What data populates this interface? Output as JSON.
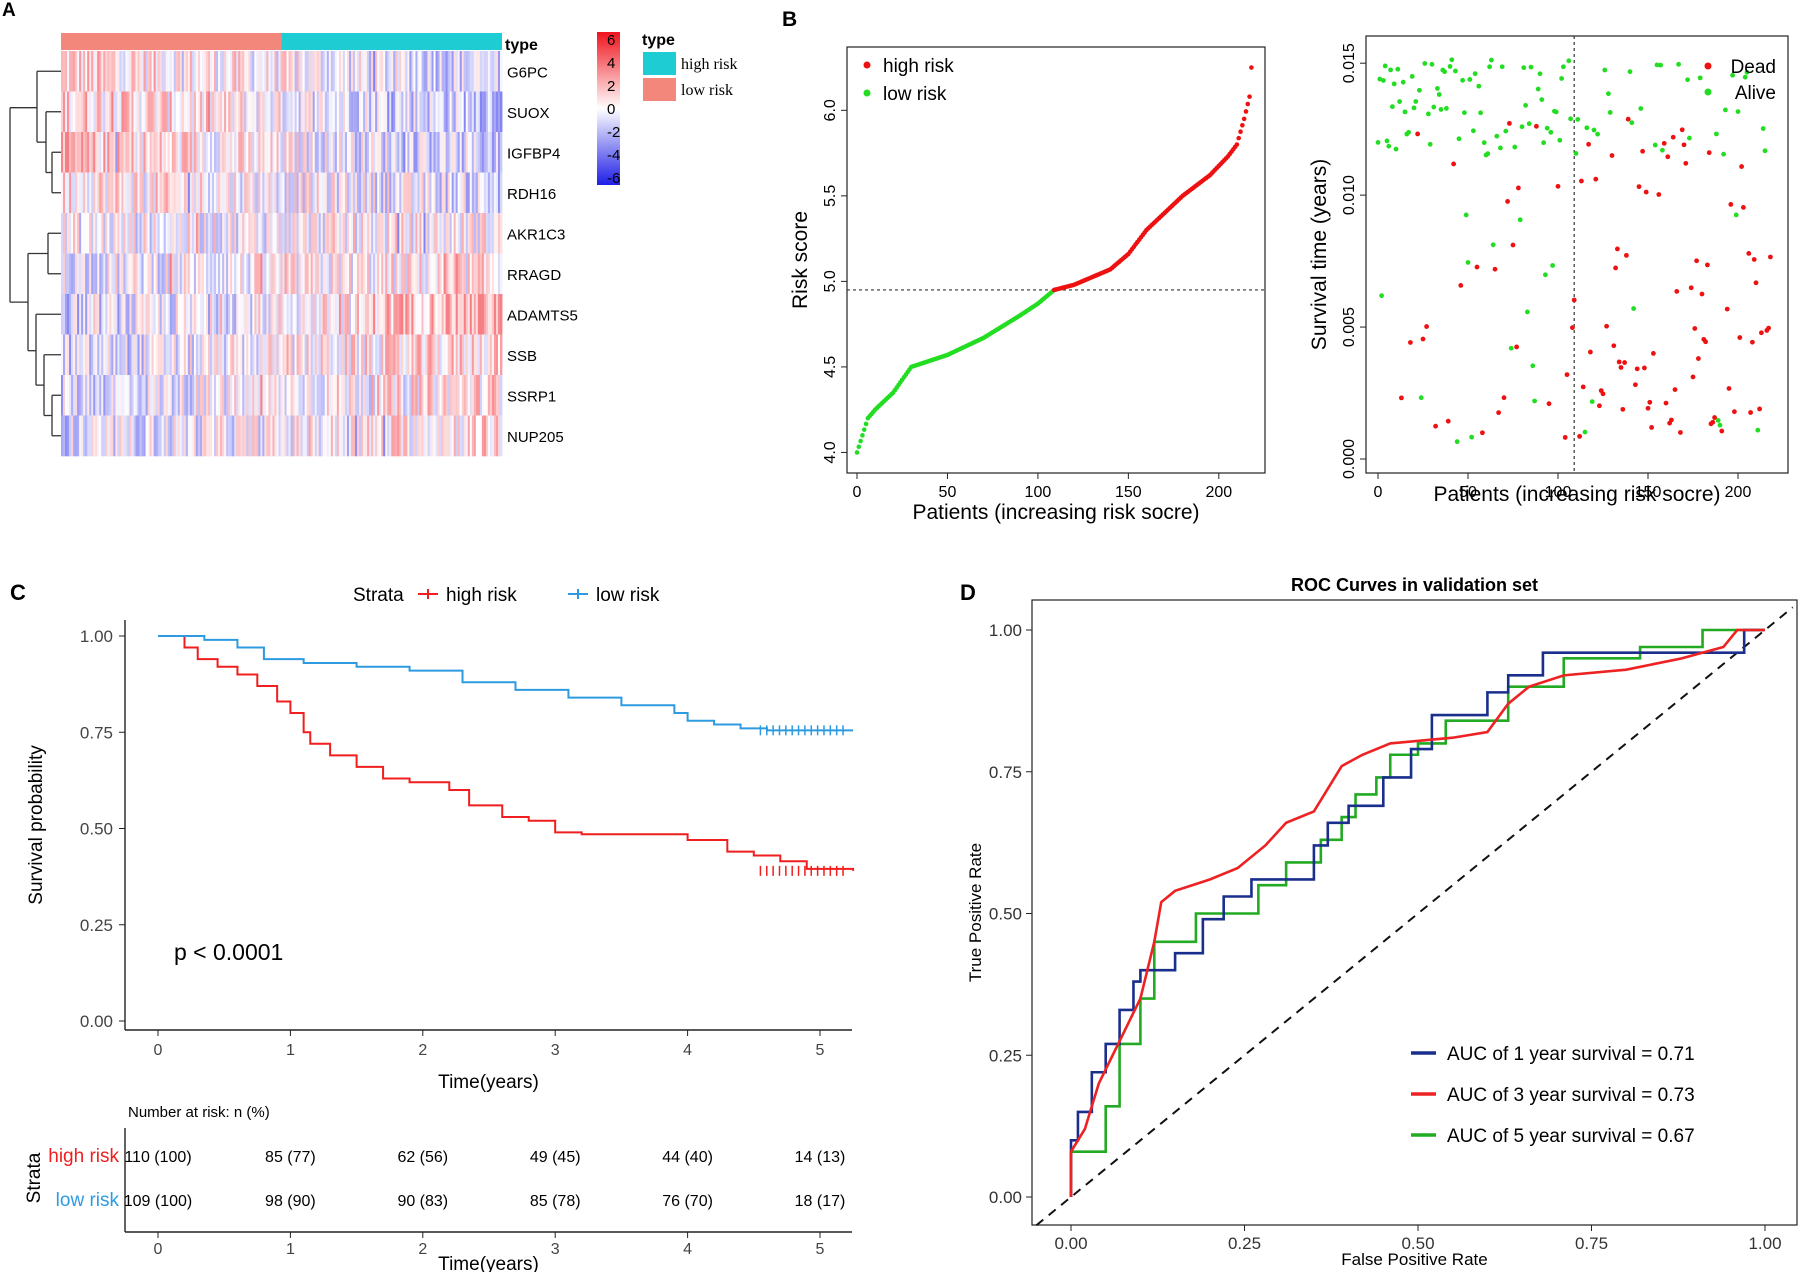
{
  "panel_labels": {
    "a": "A",
    "b": "B",
    "c": "C",
    "d": "D"
  },
  "chart_data": [
    {
      "type": "heatmap",
      "panel": "A",
      "genes": [
        "G6PC",
        "SUOX",
        "IGFBP4",
        "RDH16",
        "AKR1C3",
        "RRAGD",
        "ADAMTS5",
        "SSB",
        "SSRP1",
        "NUP205"
      ],
      "annotation_label": "type",
      "groups": [
        {
          "name": "low risk",
          "color": "#F4877B"
        },
        {
          "name": "high risk",
          "color": "#1ECDD3"
        }
      ],
      "colorbar": {
        "ticks": [
          "6",
          "4",
          "2",
          "0",
          "-2",
          "-4",
          "-6"
        ],
        "high_color": "#F0141E",
        "mid_color": "#FFFFFF",
        "low_color": "#1E1EE6"
      },
      "legend": {
        "title": "type",
        "items": [
          "high risk",
          "low risk"
        ]
      }
    },
    {
      "type": "scatter",
      "panel": "B-left",
      "xlabel": "Patients (increasing risk socre)",
      "ylabel": "Risk score",
      "xlim": [
        0,
        220
      ],
      "ylim": [
        3.95,
        6.3
      ],
      "xticks": [
        "0",
        "50",
        "100",
        "150",
        "200"
      ],
      "yticks": [
        "4.0",
        "4.5",
        "5.0",
        "5.5",
        "6.0"
      ],
      "threshold": 4.95,
      "cutoff_patient": 109,
      "n_patients": 219,
      "curve": [
        [
          0,
          4.0
        ],
        [
          3,
          4.1
        ],
        [
          6,
          4.2
        ],
        [
          10,
          4.25
        ],
        [
          15,
          4.3
        ],
        [
          20,
          4.35
        ],
        [
          30,
          4.5
        ],
        [
          50,
          4.57
        ],
        [
          70,
          4.67
        ],
        [
          90,
          4.8
        ],
        [
          100,
          4.87
        ],
        [
          109,
          4.95
        ],
        [
          120,
          4.98
        ],
        [
          140,
          5.07
        ],
        [
          150,
          5.16
        ],
        [
          160,
          5.3
        ],
        [
          180,
          5.5
        ],
        [
          195,
          5.62
        ],
        [
          205,
          5.73
        ],
        [
          210,
          5.8
        ],
        [
          214,
          5.95
        ],
        [
          217,
          6.08
        ],
        [
          218,
          6.25
        ]
      ],
      "legend": [
        {
          "label": "high risk",
          "color": "#EE1111"
        },
        {
          "label": "low risk",
          "color": "#22DD22"
        }
      ]
    },
    {
      "type": "scatter",
      "panel": "B-right",
      "xlabel": "Patients (increasing risk socre)",
      "ylabel": "Survival time (years)",
      "xlim": [
        0,
        220
      ],
      "ylim": [
        0,
        0.0155
      ],
      "xticks": [
        "0",
        "50",
        "100",
        "150",
        "200"
      ],
      "yticks": [
        "0.000",
        "0.005",
        "0.010",
        "0.015"
      ],
      "cutoff_patient": 109,
      "legend": [
        {
          "label": "Dead",
          "color": "#EE1111"
        },
        {
          "label": "Alive",
          "color": "#22DD22"
        }
      ]
    },
    {
      "type": "line",
      "panel": "C",
      "title": "Strata",
      "xlabel": "Time(years)",
      "ylabel": "Survival probability",
      "xlim": [
        0,
        5.25
      ],
      "ylim": [
        0,
        1.0
      ],
      "xticks": [
        "0",
        "1",
        "2",
        "3",
        "4",
        "5"
      ],
      "yticks": [
        "0.00",
        "0.25",
        "0.50",
        "0.75",
        "1.00"
      ],
      "pvalue": "p < 0.0001",
      "series": [
        {
          "name": "high risk",
          "color": "#F01E1E",
          "steps": [
            [
              0,
              1.0
            ],
            [
              0.2,
              0.97
            ],
            [
              0.3,
              0.94
            ],
            [
              0.45,
              0.92
            ],
            [
              0.6,
              0.9
            ],
            [
              0.75,
              0.87
            ],
            [
              0.9,
              0.83
            ],
            [
              1.0,
              0.8
            ],
            [
              1.1,
              0.75
            ],
            [
              1.15,
              0.72
            ],
            [
              1.3,
              0.69
            ],
            [
              1.5,
              0.66
            ],
            [
              1.7,
              0.63
            ],
            [
              1.9,
              0.62
            ],
            [
              2.2,
              0.6
            ],
            [
              2.35,
              0.56
            ],
            [
              2.6,
              0.53
            ],
            [
              2.8,
              0.52
            ],
            [
              3.0,
              0.49
            ],
            [
              3.2,
              0.485
            ],
            [
              3.5,
              0.485
            ],
            [
              4.0,
              0.47
            ],
            [
              4.3,
              0.44
            ],
            [
              4.5,
              0.43
            ],
            [
              4.7,
              0.415
            ],
            [
              4.9,
              0.395
            ],
            [
              5.25,
              0.39
            ]
          ]
        },
        {
          "name": "low risk",
          "color": "#2E9BE0",
          "steps": [
            [
              0,
              1.0
            ],
            [
              0.35,
              0.99
            ],
            [
              0.6,
              0.97
            ],
            [
              0.8,
              0.94
            ],
            [
              1.1,
              0.93
            ],
            [
              1.5,
              0.92
            ],
            [
              1.9,
              0.91
            ],
            [
              2.3,
              0.88
            ],
            [
              2.7,
              0.86
            ],
            [
              3.1,
              0.84
            ],
            [
              3.5,
              0.82
            ],
            [
              3.9,
              0.8
            ],
            [
              4.0,
              0.78
            ],
            [
              4.2,
              0.77
            ],
            [
              4.4,
              0.76
            ],
            [
              4.6,
              0.755
            ],
            [
              5.25,
              0.755
            ]
          ]
        }
      ],
      "risk_table": {
        "title": "Number at risk: n (%)",
        "strata_label": "Strata",
        "xlabel": "Time(years)",
        "rows": [
          {
            "label": "high risk",
            "color": "#F01E1E",
            "values": [
              "110 (100)",
              "85 (77)",
              "62 (56)",
              "49 (45)",
              "44 (40)",
              "14 (13)"
            ]
          },
          {
            "label": "low risk",
            "color": "#2E9BE0",
            "values": [
              "109 (100)",
              "98 (90)",
              "90 (83)",
              "85 (78)",
              "76 (70)",
              "18 (17)"
            ]
          }
        ]
      }
    },
    {
      "type": "line",
      "panel": "D",
      "title": "ROC Curves in validation set",
      "xlabel": "False Positive Rate",
      "ylabel": "True Positive Rate",
      "xlim": [
        -0.05,
        1.05
      ],
      "ylim": [
        -0.05,
        1.05
      ],
      "xticks": [
        "0.00",
        "0.25",
        "0.50",
        "0.75",
        "1.00"
      ],
      "yticks": [
        "0.00",
        "0.25",
        "0.50",
        "0.75",
        "1.00"
      ],
      "series": [
        {
          "name": "AUC of 1 year survival = 0.71",
          "color": "#1A2E8C",
          "points": [
            [
              0,
              0
            ],
            [
              0,
              0.1
            ],
            [
              0.01,
              0.1
            ],
            [
              0.01,
              0.15
            ],
            [
              0.03,
              0.15
            ],
            [
              0.03,
              0.22
            ],
            [
              0.05,
              0.22
            ],
            [
              0.05,
              0.27
            ],
            [
              0.07,
              0.27
            ],
            [
              0.07,
              0.33
            ],
            [
              0.09,
              0.33
            ],
            [
              0.09,
              0.38
            ],
            [
              0.1,
              0.38
            ],
            [
              0.1,
              0.4
            ],
            [
              0.15,
              0.4
            ],
            [
              0.15,
              0.43
            ],
            [
              0.19,
              0.43
            ],
            [
              0.19,
              0.49
            ],
            [
              0.22,
              0.49
            ],
            [
              0.22,
              0.53
            ],
            [
              0.26,
              0.53
            ],
            [
              0.26,
              0.56
            ],
            [
              0.35,
              0.56
            ],
            [
              0.35,
              0.62
            ],
            [
              0.37,
              0.62
            ],
            [
              0.37,
              0.66
            ],
            [
              0.4,
              0.66
            ],
            [
              0.4,
              0.69
            ],
            [
              0.45,
              0.69
            ],
            [
              0.45,
              0.74
            ],
            [
              0.49,
              0.74
            ],
            [
              0.49,
              0.79
            ],
            [
              0.52,
              0.79
            ],
            [
              0.52,
              0.85
            ],
            [
              0.6,
              0.85
            ],
            [
              0.6,
              0.89
            ],
            [
              0.63,
              0.89
            ],
            [
              0.63,
              0.92
            ],
            [
              0.68,
              0.92
            ],
            [
              0.68,
              0.96
            ],
            [
              0.97,
              0.96
            ],
            [
              0.97,
              1.0
            ],
            [
              1.0,
              1.0
            ]
          ]
        },
        {
          "name": "AUC of 3 year survival = 0.73",
          "color": "#EE2222",
          "points": [
            [
              0,
              0
            ],
            [
              0,
              0.08
            ],
            [
              0.02,
              0.12
            ],
            [
              0.04,
              0.2
            ],
            [
              0.06,
              0.25
            ],
            [
              0.08,
              0.3
            ],
            [
              0.1,
              0.35
            ],
            [
              0.11,
              0.4
            ],
            [
              0.12,
              0.45
            ],
            [
              0.13,
              0.52
            ],
            [
              0.15,
              0.54
            ],
            [
              0.2,
              0.56
            ],
            [
              0.24,
              0.58
            ],
            [
              0.28,
              0.62
            ],
            [
              0.31,
              0.66
            ],
            [
              0.35,
              0.68
            ],
            [
              0.37,
              0.72
            ],
            [
              0.39,
              0.76
            ],
            [
              0.42,
              0.78
            ],
            [
              0.46,
              0.8
            ],
            [
              0.55,
              0.81
            ],
            [
              0.6,
              0.82
            ],
            [
              0.63,
              0.87
            ],
            [
              0.66,
              0.9
            ],
            [
              0.71,
              0.92
            ],
            [
              0.8,
              0.93
            ],
            [
              0.88,
              0.95
            ],
            [
              0.94,
              0.97
            ],
            [
              0.96,
              1.0
            ],
            [
              1.0,
              1.0
            ]
          ]
        },
        {
          "name": "AUC of 5 year survival = 0.67",
          "color": "#22AA22",
          "points": [
            [
              0,
              0
            ],
            [
              0,
              0.08
            ],
            [
              0.05,
              0.08
            ],
            [
              0.05,
              0.16
            ],
            [
              0.07,
              0.16
            ],
            [
              0.07,
              0.27
            ],
            [
              0.1,
              0.27
            ],
            [
              0.1,
              0.35
            ],
            [
              0.12,
              0.35
            ],
            [
              0.12,
              0.45
            ],
            [
              0.18,
              0.45
            ],
            [
              0.18,
              0.5
            ],
            [
              0.27,
              0.5
            ],
            [
              0.27,
              0.55
            ],
            [
              0.31,
              0.55
            ],
            [
              0.31,
              0.59
            ],
            [
              0.36,
              0.59
            ],
            [
              0.36,
              0.63
            ],
            [
              0.39,
              0.63
            ],
            [
              0.39,
              0.67
            ],
            [
              0.41,
              0.67
            ],
            [
              0.41,
              0.71
            ],
            [
              0.44,
              0.71
            ],
            [
              0.44,
              0.74
            ],
            [
              0.46,
              0.74
            ],
            [
              0.46,
              0.78
            ],
            [
              0.5,
              0.78
            ],
            [
              0.5,
              0.8
            ],
            [
              0.54,
              0.8
            ],
            [
              0.54,
              0.84
            ],
            [
              0.63,
              0.84
            ],
            [
              0.63,
              0.9
            ],
            [
              0.71,
              0.9
            ],
            [
              0.71,
              0.95
            ],
            [
              0.82,
              0.95
            ],
            [
              0.82,
              0.97
            ],
            [
              0.91,
              0.97
            ],
            [
              0.91,
              1.0
            ],
            [
              1.0,
              1.0
            ]
          ]
        }
      ]
    }
  ]
}
